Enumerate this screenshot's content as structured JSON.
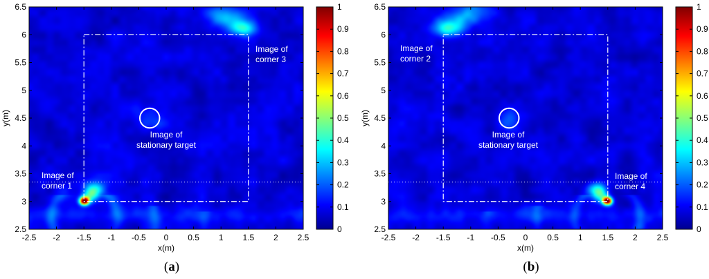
{
  "chart_data": [
    {
      "type": "heatmap",
      "panel_label": {
        "open": "(",
        "letter": "a",
        "close": ")"
      },
      "xlabel": "x(m)",
      "ylabel": "y(m)",
      "xlim": [
        -2.5,
        2.5
      ],
      "ylim": [
        2.5,
        6.5
      ],
      "xticks": [
        "-2.5",
        "-2",
        "-1.5",
        "-1",
        "-0.5",
        "0",
        "0.5",
        "1",
        "1.5",
        "2",
        "2.5"
      ],
      "yticks": [
        "2.5",
        "3",
        "3.5",
        "4",
        "4.5",
        "5",
        "5.5",
        "6",
        "6.5"
      ],
      "colorbar": {
        "min": 0,
        "max": 1,
        "ticks": [
          "0",
          "0.1",
          "0.2",
          "0.3",
          "0.4",
          "0.5",
          "0.6",
          "0.7",
          "0.8",
          "0.9",
          "1"
        ],
        "colormap": "jet"
      },
      "room_outline": {
        "x": [
          -1.5,
          1.5
        ],
        "y": [
          3.0,
          6.0
        ]
      },
      "horizontal_dotted_line_y": 3.35,
      "stationary_target": {
        "x": -0.3,
        "y": 4.5,
        "radius": 0.18
      },
      "peaks": [
        {
          "x": -1.5,
          "y": 3.0,
          "amplitude": 1.0
        },
        {
          "x": 1.5,
          "y": 6.0,
          "amplitude": 0.3
        }
      ],
      "annotations": [
        {
          "lines": [
            "Image of",
            "corner 1"
          ]
        },
        {
          "lines": [
            "Image of",
            "corner 3"
          ]
        },
        {
          "lines": [
            "Image of",
            "stationary target"
          ]
        }
      ]
    },
    {
      "type": "heatmap",
      "panel_label": {
        "open": "(",
        "letter": "b",
        "close": ")"
      },
      "xlabel": "x(m)",
      "ylabel": "y(m)",
      "xlim": [
        -2.5,
        2.5
      ],
      "ylim": [
        2.5,
        6.5
      ],
      "xticks": [
        "-2.5",
        "-2",
        "-1.5",
        "-1",
        "-0.5",
        "0",
        "0.5",
        "1",
        "1.5",
        "2",
        "2.5"
      ],
      "yticks": [
        "2.5",
        "3",
        "3.5",
        "4",
        "4.5",
        "5",
        "5.5",
        "6",
        "6.5"
      ],
      "colorbar": {
        "min": 0,
        "max": 1,
        "ticks": [
          "0",
          "0.1",
          "0.2",
          "0.3",
          "0.4",
          "0.5",
          "0.6",
          "0.7",
          "0.8",
          "0.9",
          "1"
        ],
        "colormap": "jet"
      },
      "room_outline": {
        "x": [
          -1.5,
          1.5
        ],
        "y": [
          3.0,
          6.0
        ]
      },
      "horizontal_dotted_line_y": 3.35,
      "stationary_target": {
        "x": -0.3,
        "y": 4.5,
        "radius": 0.18
      },
      "peaks": [
        {
          "x": 1.5,
          "y": 3.0,
          "amplitude": 1.0
        },
        {
          "x": -1.5,
          "y": 6.0,
          "amplitude": 0.3
        }
      ],
      "annotations": [
        {
          "lines": [
            "Image of",
            "corner 2"
          ]
        },
        {
          "lines": [
            "Image of",
            "corner 4"
          ]
        },
        {
          "lines": [
            "Image of",
            "stationary target"
          ]
        }
      ]
    }
  ]
}
